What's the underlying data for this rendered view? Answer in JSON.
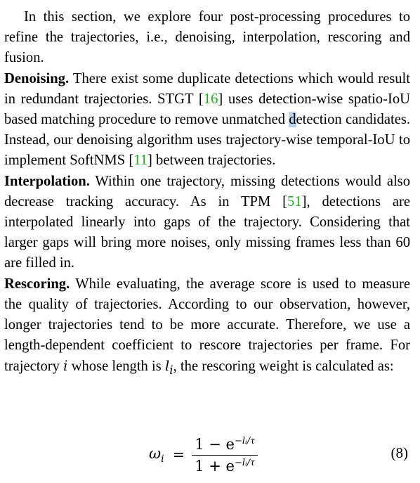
{
  "section_intro": {
    "text": "In this section, we explore four post-processing procedures to refine the trajectories, i.e., denoising, interpolation, rescoring and fusion."
  },
  "denoising": {
    "title": "Denoising.",
    "text_1": " There exist some duplicate detections which would result in redundant trajectories.  STGT [",
    "cite_1": "16",
    "text_2": "] uses detection-wise spatio-IoU based matching procedure to remove unmatched ",
    "cursor_char": "d",
    "text_3": "etection candidates. Instead, our denoising algorithm uses trajectory-wise temporal-IoU to implement SoftNMS [",
    "cite_2": "11",
    "text_4": "] between trajectories."
  },
  "interpolation": {
    "title": "Interpolation.",
    "text_1": " Within one trajectory, missing detections would also decrease tracking accuracy.  As in TPM [",
    "cite_1": "51",
    "text_2": "], detections are interpolated linearly into gaps of the trajectory.  Considering that larger gaps will bring more noises, only missing frames less than 60 are filled in."
  },
  "rescoring": {
    "title": "Rescoring.",
    "text_1": " While evaluating, the average score is used to measure the quality of trajectories.  According to our observation, however, longer trajectories tend to be more accurate. Therefore, we use a length-dependent coefficient to rescore trajectories per frame. For trajectory ",
    "var_i": "i",
    "text_2": " whose length is ",
    "var_l": "l",
    "var_l_sub": "i",
    "text_3": ", the rescoring weight is calculated as:"
  },
  "equation": {
    "lhs": "ω",
    "lhs_sub": "i",
    "equals": "=",
    "numerator": "1 − e",
    "numerator_exp": "−lᵢ/τ",
    "denominator": "1 + e",
    "denominator_exp": "−lᵢ/τ",
    "number": "(8)"
  }
}
